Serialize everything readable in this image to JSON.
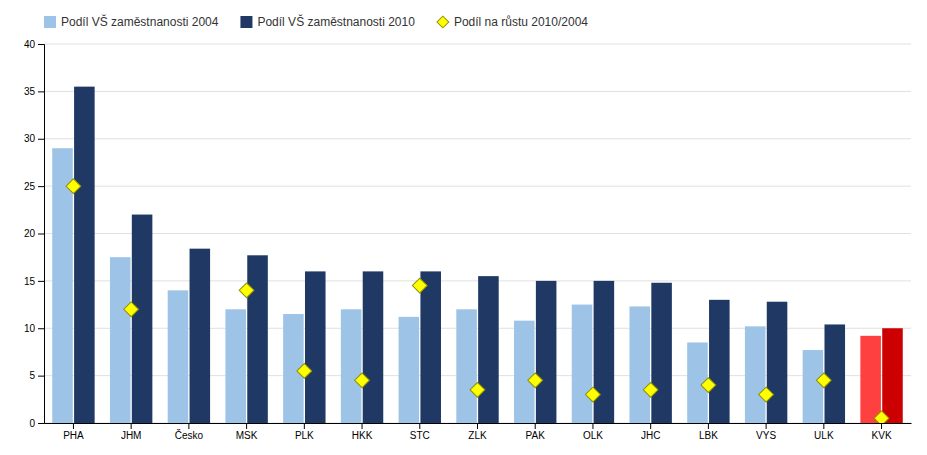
{
  "chart_data": {
    "type": "bar",
    "categories": [
      "PHA",
      "JHM",
      "Česko",
      "MSK",
      "PLK",
      "HKK",
      "STC",
      "ZLK",
      "PAK",
      "OLK",
      "JHC",
      "LBK",
      "VYS",
      "ULK",
      "KVK"
    ],
    "series": [
      {
        "name": "Podíl VŠ zaměstnanosti 2004",
        "type": "bar",
        "color": "#9DC3E6",
        "colors": [
          "#9DC3E6",
          "#9DC3E6",
          "#9DC3E6",
          "#9DC3E6",
          "#9DC3E6",
          "#9DC3E6",
          "#9DC3E6",
          "#9DC3E6",
          "#9DC3E6",
          "#9DC3E6",
          "#9DC3E6",
          "#9DC3E6",
          "#9DC3E6",
          "#9DC3E6",
          "#FF4040"
        ],
        "values": [
          29.0,
          17.5,
          14.0,
          12.0,
          11.5,
          12.0,
          11.2,
          12.0,
          10.8,
          12.5,
          12.3,
          8.5,
          10.2,
          7.7,
          9.2
        ]
      },
      {
        "name": "Podíl VŠ zaměstnanosti 2010",
        "type": "bar",
        "color": "#1F3864",
        "colors": [
          "#1F3864",
          "#1F3864",
          "#1F3864",
          "#1F3864",
          "#1F3864",
          "#1F3864",
          "#1F3864",
          "#1F3864",
          "#1F3864",
          "#1F3864",
          "#1F3864",
          "#1F3864",
          "#1F3864",
          "#1F3864",
          "#CC0000"
        ],
        "values": [
          35.5,
          22.0,
          18.4,
          17.7,
          16.0,
          16.0,
          16.0,
          15.5,
          15.0,
          15.0,
          14.8,
          13.0,
          12.8,
          10.4,
          10.0
        ]
      },
      {
        "name": "Podíl na růstu 2010/2004",
        "type": "scatter",
        "marker": "diamond",
        "color": "#FFFF00",
        "values": [
          25.0,
          12.0,
          null,
          14.0,
          5.5,
          4.5,
          14.5,
          3.5,
          4.5,
          3.0,
          3.5,
          4.0,
          3.0,
          4.5,
          0.5
        ]
      }
    ],
    "ylim": [
      0,
      40
    ],
    "yticks": [
      0,
      5,
      10,
      15,
      20,
      25,
      30,
      35,
      40
    ],
    "grid": true,
    "legend": "upper left"
  }
}
